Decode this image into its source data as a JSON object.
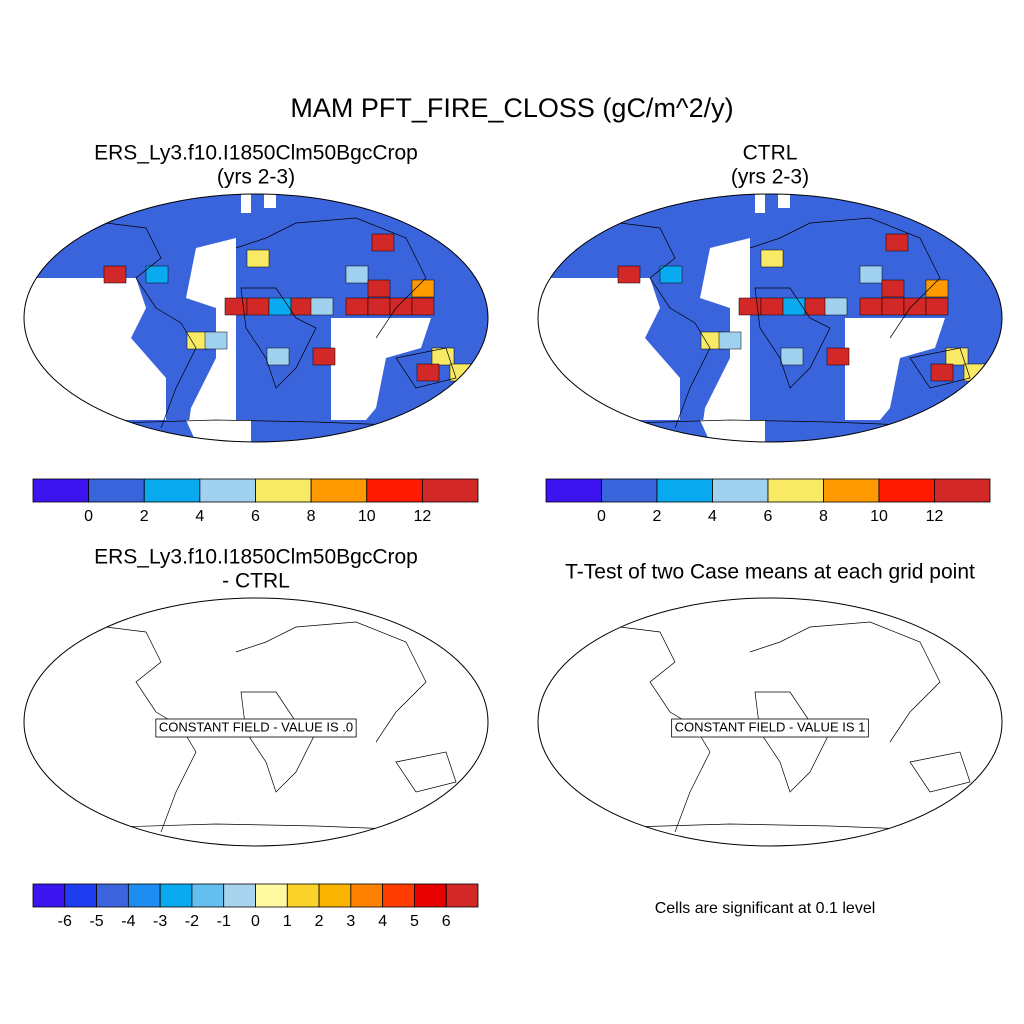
{
  "title": "MAM PFT_FIRE_CLOSS (gC/m^2/y)",
  "panels": [
    {
      "title_lines": [
        "ERS_Ly3.f10.I1850Clm50BgcCrop",
        "(yrs 2-3)"
      ]
    },
    {
      "title_lines": [
        "CTRL",
        "(yrs 2-3)"
      ]
    },
    {
      "title_lines": [
        "ERS_Ly3.f10.I1850Clm50BgcCrop",
        "- CTRL"
      ],
      "note": "CONSTANT FIELD - VALUE IS .0"
    },
    {
      "title_lines": [
        "T-Test of two Case means at each grid point"
      ],
      "note": "CONSTANT FIELD - VALUE IS 1"
    }
  ],
  "colorbars": [
    {
      "colors": [
        "#3b14f0",
        "#3a64dc",
        "#0aaaf0",
        "#a0d2f0",
        "#f8ea64",
        "#ff9a00",
        "#ff1a00",
        "#d22828"
      ],
      "labels": [
        0,
        2,
        4,
        6,
        8,
        10,
        12
      ]
    },
    {
      "colors": [
        "#3b14f0",
        "#3a64dc",
        "#0aaaf0",
        "#a0d2f0",
        "#f8ea64",
        "#ff9a00",
        "#ff1a00",
        "#d22828"
      ],
      "labels": [
        0,
        2,
        4,
        6,
        8,
        10,
        12
      ]
    },
    {
      "colors": [
        "#3c14f0",
        "#1e3cf0",
        "#3c64dc",
        "#1e8cf0",
        "#0aaaf0",
        "#64bef0",
        "#a8d4f0",
        "#fffaa0",
        "#fad228",
        "#fab400",
        "#ff8200",
        "#ff3c00",
        "#e60000",
        "#d22828"
      ],
      "labels": [
        -6,
        -5,
        -4,
        -3,
        -2,
        -1,
        0,
        1,
        2,
        3,
        4,
        5,
        6
      ]
    }
  ],
  "significance_note": "Cells are significant at 0.1 level"
}
